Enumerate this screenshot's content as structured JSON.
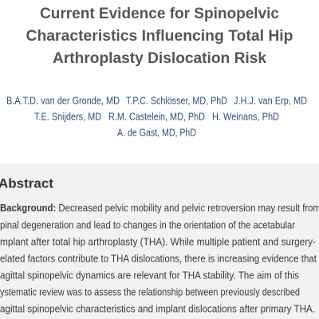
{
  "header": {
    "title_lines": [
      "Current Evidence for Spinopelvic",
      "Characteristics Influencing Total Hip",
      "Arthroplasty Dislocation Risk"
    ]
  },
  "authors": [
    [
      "B.A.T.D. van der Gronde, MD",
      "T.P.C. Schlösser, MD, PhD",
      "J.H.J. van Erp, MD"
    ],
    [
      "T.E. Snijders, MD",
      "R.M. Castelein, MD, PhD",
      "H. Weinans, PhD"
    ],
    [
      "A. de Gast, MD, PhD"
    ]
  ],
  "abstract": {
    "heading": "Abstract",
    "label": "Background:",
    "first_line": " Decreased pelvic mobility and pelvic retroversion may result from",
    "lines": [
      "pinal degeneration and lead to changes in the orientation of the acetabular",
      "mplant after total hip arthroplasty (THA). While multiple patient and surgery-",
      "elated factors contribute to THA dislocations, there is increasing evidence that",
      "agittal spinopelvic dynamics are relevant for THA stability. The aim of this",
      "ystematic review was to assess the relationship between previously described",
      "agittal spinopelvic characteristics and implant dislocations after primary THA."
    ]
  }
}
